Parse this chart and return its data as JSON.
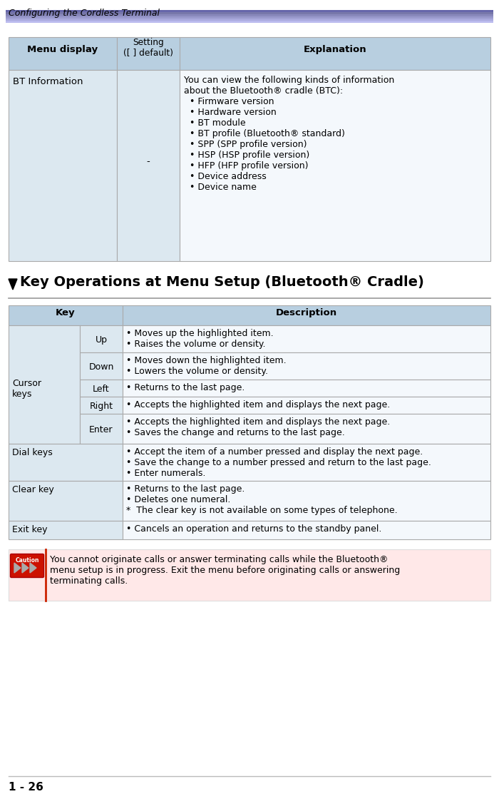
{
  "page_header": "Configuring the Cordless Terminal",
  "page_number": "1 - 26",
  "section_title_1": "Key Operations at Menu Setup (Bluetooth",
  "section_title_reg": "®",
  "section_title_2": " Cradle)",
  "header_bg": "#b8cfe0",
  "cell_bg_light": "#dce8f0",
  "cell_bg_white": "#ffffff",
  "caution_bg": "#ffe8e8",
  "caution_left_border": "#cc2200",
  "stripe_colors": [
    "#6666aa",
    "#7777aa",
    "#8888bb",
    "#9999cc",
    "#aaaadd",
    "#bbbbee"
  ],
  "table1_header": [
    "Menu display",
    "Setting\n([ ] default)",
    "Explanation"
  ],
  "bt_col3": "You can view the following kinds of information\nabout the Bluetooth® cradle (BTC):\n  • Firmware version\n  • Hardware version\n  • BT module\n  • BT profile (Bluetooth® standard)\n  • SPP (SPP profile version)\n  • HSP (HSP profile version)\n  • HFP (HFP profile version)\n  • Device address\n  • Device name",
  "table2_rows": [
    {
      "col1": "Cursor\nkeys",
      "col2": "Up",
      "col3": "• Moves up the highlighted item.\n• Raises the volume or density.",
      "span": true
    },
    {
      "col1": "",
      "col2": "Down",
      "col3": "• Moves down the highlighted item.\n• Lowers the volume or density.",
      "span": true
    },
    {
      "col1": "",
      "col2": "Left",
      "col3": "• Returns to the last page.",
      "span": true
    },
    {
      "col1": "",
      "col2": "Right",
      "col3": "• Accepts the highlighted item and displays the next page.",
      "span": true
    },
    {
      "col1": "",
      "col2": "Enter",
      "col3": "• Accepts the highlighted item and displays the next page.\n• Saves the change and returns to the last page.",
      "span": true
    },
    {
      "col1": "Dial keys",
      "col2": "",
      "col3": "• Accept the item of a number pressed and display the next page.\n• Save the change to a number pressed and return to the last page.\n• Enter numerals.",
      "span": false
    },
    {
      "col1": "Clear key",
      "col2": "",
      "col3": "• Returns to the last page.\n• Deletes one numeral.\n*  The clear key is not available on some types of telephone.",
      "span": false
    },
    {
      "col1": "Exit key",
      "col2": "",
      "col3": "• Cancels an operation and returns to the standby panel.",
      "span": false
    }
  ],
  "caution_text": "You cannot originate calls or answer terminating calls while the Bluetooth®\nmenu setup is in progress. Exit the menu before originating calls or answering\nterminating calls."
}
